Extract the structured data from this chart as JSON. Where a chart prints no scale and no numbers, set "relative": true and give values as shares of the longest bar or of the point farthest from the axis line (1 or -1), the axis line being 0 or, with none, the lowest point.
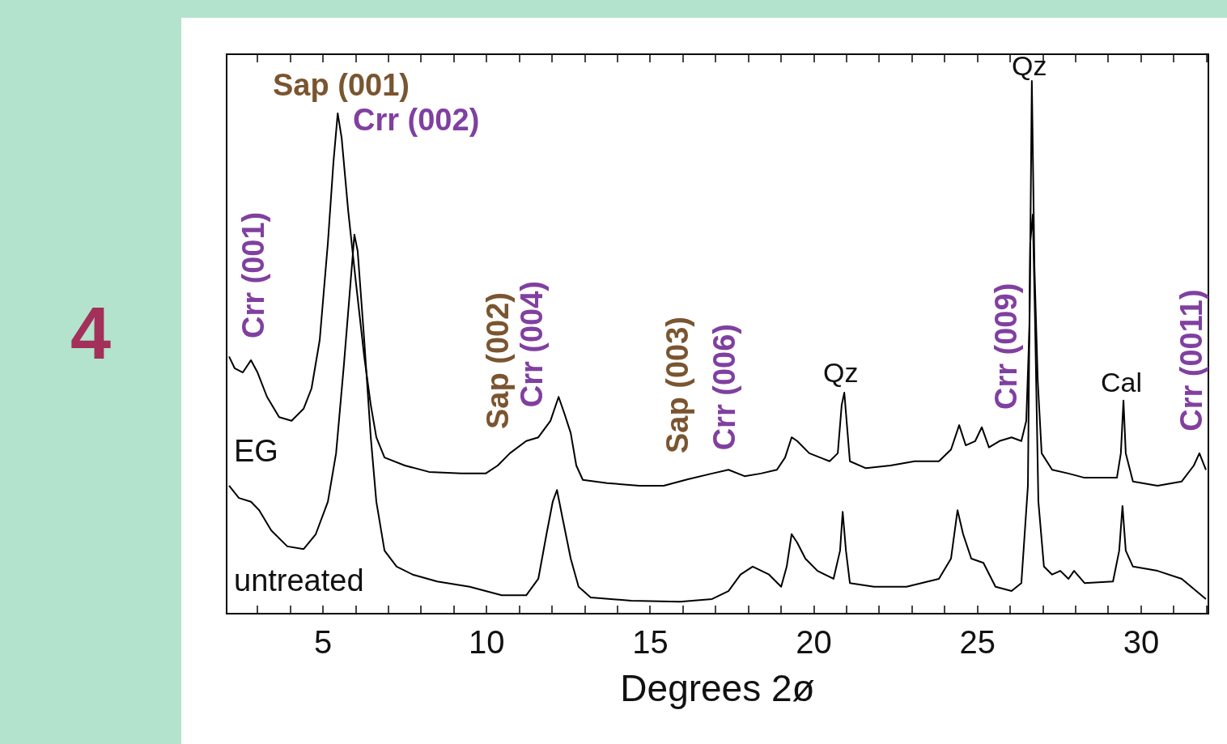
{
  "chart_data": {
    "type": "line",
    "relative": true,
    "xlabel": "Degrees 2ø",
    "xlim": [
      2.08,
      32.03
    ],
    "xticks": [
      {
        "value": 3,
        "label": null
      },
      {
        "value": 4,
        "label": null
      },
      5,
      {
        "value": 6,
        "label": null
      },
      {
        "value": 7,
        "label": null
      },
      {
        "value": 8,
        "label": null
      },
      {
        "value": 9,
        "label": null
      },
      10,
      {
        "value": 11,
        "label": null
      },
      {
        "value": 12,
        "label": null
      },
      {
        "value": 13,
        "label": null
      },
      {
        "value": 14,
        "label": null
      },
      15,
      {
        "value": 16,
        "label": null
      },
      {
        "value": 17,
        "label": null
      },
      {
        "value": 18,
        "label": null
      },
      {
        "value": 19,
        "label": null
      },
      20,
      {
        "value": 21,
        "label": null
      },
      {
        "value": 22,
        "label": null
      },
      {
        "value": 23,
        "label": null
      },
      {
        "value": 24,
        "label": null
      },
      25,
      {
        "value": 26,
        "label": null
      },
      {
        "value": 27,
        "label": null
      },
      {
        "value": 28,
        "label": null
      },
      {
        "value": 29,
        "label": null
      },
      30,
      {
        "value": 31,
        "label": null
      },
      {
        "value": 32,
        "label": null
      }
    ],
    "tick_labels": "x",
    "legend": false,
    "marker": "none",
    "line_style": "solid",
    "series": [
      {
        "name": "EG",
        "color": "#000000",
        "x": [
          2.13,
          2.3,
          2.55,
          2.8,
          3.0,
          3.29,
          3.66,
          4.04,
          4.41,
          4.65,
          4.9,
          5.15,
          5.32,
          5.45,
          5.57,
          5.77,
          6.01,
          6.26,
          6.46,
          6.63,
          6.88,
          7.5,
          8.24,
          9.23,
          9.97,
          10.34,
          10.71,
          11.21,
          11.58,
          11.95,
          12.2,
          12.37,
          12.57,
          12.74,
          12.94,
          13.68,
          14.67,
          15.41,
          16.15,
          16.89,
          17.39,
          17.88,
          18.38,
          18.87,
          19.12,
          19.32,
          19.49,
          19.86,
          20.48,
          20.73,
          20.85,
          20.93,
          21.0,
          21.1,
          21.59,
          22.34,
          23.08,
          23.82,
          24.19,
          24.44,
          24.64,
          24.93,
          25.13,
          25.35,
          25.67,
          26.04,
          26.34,
          26.49,
          26.59,
          26.66,
          26.74,
          26.84,
          26.96,
          27.28,
          27.78,
          28.27,
          29.26,
          29.38,
          29.46,
          29.53,
          29.75,
          30.5,
          31.24,
          31.61,
          31.78,
          31.98
        ],
        "values": [
          0.482,
          0.46,
          0.452,
          0.475,
          0.452,
          0.406,
          0.368,
          0.361,
          0.384,
          0.422,
          0.513,
          0.696,
          0.848,
          0.939,
          0.893,
          0.756,
          0.619,
          0.482,
          0.391,
          0.33,
          0.292,
          0.277,
          0.265,
          0.262,
          0.262,
          0.277,
          0.3,
          0.323,
          0.33,
          0.361,
          0.406,
          0.376,
          0.338,
          0.277,
          0.25,
          0.244,
          0.239,
          0.239,
          0.251,
          0.262,
          0.269,
          0.257,
          0.262,
          0.269,
          0.292,
          0.33,
          0.323,
          0.3,
          0.285,
          0.3,
          0.391,
          0.414,
          0.361,
          0.285,
          0.272,
          0.277,
          0.285,
          0.285,
          0.307,
          0.353,
          0.315,
          0.323,
          0.349,
          0.311,
          0.323,
          0.33,
          0.323,
          0.361,
          0.543,
          1,
          0.65,
          0.437,
          0.3,
          0.269,
          0.262,
          0.254,
          0.254,
          0.3,
          0.399,
          0.3,
          0.247,
          0.239,
          0.247,
          0.277,
          0.3,
          0.269
        ]
      },
      {
        "name": "untreated",
        "color": "#000000",
        "x": [
          2.13,
          2.43,
          2.8,
          3.05,
          3.42,
          3.91,
          4.41,
          4.78,
          5.15,
          5.4,
          5.64,
          5.82,
          5.96,
          6.06,
          6.26,
          6.46,
          6.63,
          6.88,
          7.25,
          7.74,
          8.49,
          9.48,
          10.46,
          11.21,
          11.58,
          11.83,
          12.02,
          12.15,
          12.32,
          12.57,
          12.81,
          13.18,
          14.42,
          15.91,
          16.89,
          17.39,
          17.76,
          18.13,
          18.63,
          19.0,
          19.17,
          19.32,
          19.49,
          19.74,
          20.11,
          20.6,
          20.8,
          20.88,
          20.98,
          21.1,
          21.84,
          22.83,
          23.82,
          24.19,
          24.39,
          24.56,
          24.81,
          25.18,
          25.55,
          26.04,
          26.34,
          26.54,
          26.61,
          26.69,
          26.76,
          26.86,
          27.03,
          27.28,
          27.53,
          27.78,
          27.95,
          28.27,
          29.14,
          29.33,
          29.43,
          29.53,
          29.75,
          30.5,
          31.24,
          31.98
        ],
        "values": [
          0.239,
          0.216,
          0.209,
          0.193,
          0.155,
          0.125,
          0.12,
          0.148,
          0.209,
          0.3,
          0.467,
          0.604,
          0.711,
          0.68,
          0.513,
          0.33,
          0.209,
          0.117,
          0.087,
          0.072,
          0.059,
          0.049,
          0.033,
          0.033,
          0.064,
          0.148,
          0.209,
          0.231,
          0.178,
          0.102,
          0.049,
          0.029,
          0.023,
          0.021,
          0.026,
          0.041,
          0.072,
          0.087,
          0.072,
          0.049,
          0.087,
          0.148,
          0.132,
          0.102,
          0.079,
          0.064,
          0.117,
          0.19,
          0.117,
          0.056,
          0.049,
          0.049,
          0.064,
          0.102,
          0.193,
          0.148,
          0.102,
          0.094,
          0.049,
          0.041,
          0.056,
          0.239,
          0.696,
          0.749,
          0.543,
          0.209,
          0.087,
          0.072,
          0.079,
          0.064,
          0.079,
          0.056,
          0.059,
          0.117,
          0.201,
          0.117,
          0.087,
          0.079,
          0.064,
          0.026
        ]
      }
    ],
    "annotations": [
      {
        "text": "Sap (001)",
        "x": 5.45,
        "y": 0.939
      },
      {
        "text": "Crr (002)",
        "x": 5.45,
        "y": 0.939
      },
      {
        "text": "Crr (001)",
        "x": 2.8,
        "y": 0.475
      },
      {
        "text": "Sap (002)",
        "x": 10.34,
        "y": 0.277
      },
      {
        "text": "Crr (004)",
        "x": 11.58,
        "y": 0.33
      },
      {
        "text": "Sap (003)",
        "x": 16.15,
        "y": 0.251
      },
      {
        "text": "Crr (006)",
        "x": 17.39,
        "y": 0.269
      },
      {
        "text": "Qz",
        "x": 20.93,
        "y": 0.414
      },
      {
        "text": "Crr (009)",
        "x": 26.04,
        "y": 0.33
      },
      {
        "text": "Qz",
        "x": 26.66,
        "y": 1
      },
      {
        "text": "Cal",
        "x": 29.46,
        "y": 0.399
      },
      {
        "text": "Crr (0011)",
        "x": 31.78,
        "y": 0.3
      },
      "4"
    ]
  }
}
